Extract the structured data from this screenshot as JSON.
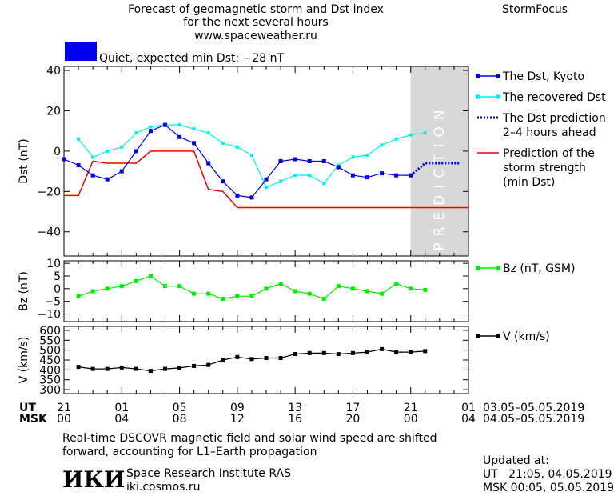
{
  "header": {
    "title_lines": [
      "Forecast of geomagnetic storm and Dst index",
      "for the next several hours",
      "www.spaceweather.ru"
    ],
    "brand": "StormFocus"
  },
  "status": {
    "text": "Quiet, expected min Dst: −28 nT",
    "color": "#0000ee"
  },
  "colors": {
    "dst": "#0000dd",
    "recovered": "#00eeee",
    "prediction_dotted": "#0000dd",
    "storm_strength": "#ee0000",
    "bz": "#00ee00",
    "v": "#000000",
    "prediction_band": "#d8d8d8"
  },
  "prediction_band_label": "PREDICTION",
  "legend": {
    "dst": "The Dst, Kyoto",
    "recovered": "The recovered Dst",
    "prediction": [
      "The Dst prediction",
      "2–4 hours ahead"
    ],
    "storm": [
      "Prediction of the",
      "storm strength",
      "(min Dst)"
    ],
    "bz": "Bz (nT, GSM)",
    "v": "V (km/s)"
  },
  "time_axis": {
    "ut_label": "UT",
    "msk_label": "MSK",
    "ut_ticks": [
      "21",
      "01",
      "05",
      "09",
      "13",
      "17",
      "21",
      "01"
    ],
    "msk_ticks": [
      "00",
      "04",
      "08",
      "12",
      "16",
      "20",
      "00",
      "04"
    ],
    "ut_range": "03.05–05.05.2019",
    "msk_range": "04.05–05.05.2019"
  },
  "chart_data": [
    {
      "type": "line",
      "ylabel": "Dst (nT)",
      "ylim": [
        -52,
        42
      ],
      "yticks": [
        40,
        20,
        0,
        -20,
        -40
      ],
      "x_unit": "hours since 21 UT, 03.05.2019",
      "xlim": [
        0,
        28
      ],
      "prediction_band": [
        24,
        28
      ],
      "series": [
        {
          "name": "The Dst, Kyoto",
          "x": [
            0,
            1,
            2,
            3,
            4,
            5,
            6,
            7,
            8,
            9,
            10,
            11,
            12,
            13,
            14,
            15,
            16,
            17,
            18,
            19,
            20,
            21,
            22,
            23,
            24
          ],
          "values": [
            -4,
            -7,
            -12,
            -14,
            -10,
            0,
            10,
            13,
            7,
            4,
            -6,
            -15,
            -22,
            -23,
            -14,
            -5,
            -4,
            -5,
            -5,
            -8,
            -12,
            -13,
            -11,
            -12,
            -12
          ]
        },
        {
          "name": "The recovered Dst",
          "x": [
            1,
            2,
            3,
            4,
            5,
            6,
            7,
            8,
            9,
            10,
            11,
            12,
            13,
            14,
            15,
            16,
            17,
            18,
            19,
            20,
            21,
            22,
            23,
            24,
            25
          ],
          "values": [
            6,
            -3,
            0,
            2,
            9,
            12,
            13,
            13,
            11,
            9,
            4,
            2,
            -2,
            -18,
            -15,
            -12,
            -12,
            -16,
            -7,
            -3,
            -2,
            3,
            6,
            8,
            9
          ]
        },
        {
          "name": "The Dst prediction 2–4 hours ahead",
          "x": [
            24,
            24.5,
            25,
            25.5,
            26,
            26.5,
            27,
            27.5
          ],
          "values": [
            -12,
            -9,
            -6,
            -6,
            -6,
            -6,
            -6,
            -6
          ]
        },
        {
          "name": "Prediction of the storm strength (min Dst)",
          "x": [
            0,
            1,
            2,
            3,
            4,
            5,
            6,
            7,
            8,
            9,
            10,
            11,
            12,
            13,
            14,
            15,
            16,
            17,
            18,
            19,
            20,
            21,
            22,
            23,
            24,
            25,
            26,
            27,
            28
          ],
          "values": [
            -22,
            -22,
            -5,
            -6,
            -6,
            -6,
            0,
            0,
            0,
            0,
            -19,
            -20,
            -28,
            -28,
            -28,
            -28,
            -28,
            -28,
            -28,
            -28,
            -28,
            -28,
            -28,
            -28,
            -28,
            -28,
            -28,
            -28,
            -28
          ]
        }
      ]
    },
    {
      "type": "line",
      "ylabel": "Bz (nT)",
      "ylim": [
        -13,
        11
      ],
      "yticks": [
        10,
        5,
        0,
        -5,
        -10
      ],
      "series": [
        {
          "name": "Bz (nT, GSM)",
          "x": [
            1,
            2,
            3,
            4,
            5,
            6,
            7,
            8,
            9,
            10,
            11,
            12,
            13,
            14,
            15,
            16,
            17,
            18,
            19,
            20,
            21,
            22,
            23,
            24,
            25
          ],
          "values": [
            -3,
            -1,
            0,
            1,
            3,
            5,
            1,
            1,
            -2,
            -2,
            -4,
            -3,
            -3,
            0,
            2,
            -1,
            -2,
            -4,
            1,
            0,
            -1,
            -2,
            2,
            0,
            -0.5
          ]
        }
      ]
    },
    {
      "type": "line",
      "ylabel": "V (km/s)",
      "ylim": [
        280,
        620
      ],
      "yticks": [
        600,
        550,
        500,
        450,
        400,
        350,
        300
      ],
      "series": [
        {
          "name": "V (km/s)",
          "x": [
            1,
            2,
            3,
            4,
            5,
            6,
            7,
            8,
            9,
            10,
            11,
            12,
            13,
            14,
            15,
            16,
            17,
            18,
            19,
            20,
            21,
            22,
            23,
            24,
            25
          ],
          "values": [
            415,
            405,
            405,
            412,
            405,
            395,
            405,
            410,
            420,
            425,
            450,
            465,
            455,
            460,
            460,
            480,
            485,
            485,
            480,
            485,
            490,
            505,
            490,
            490,
            495
          ]
        }
      ]
    }
  ],
  "footer": {
    "note": [
      "Real-time DSCOVR magnetic field and solar wind speed are shifted",
      "forward, accounting for L1–Earth propagation"
    ],
    "logo_text": "ИКИ",
    "institute": "Space Research Institute RAS",
    "site": "iki.cosmos.ru",
    "updated_label": "Updated at:",
    "updated_ut": "UT   21:05, 04.05.2019",
    "updated_msk": "MSK 00:05, 05.05.2019"
  }
}
